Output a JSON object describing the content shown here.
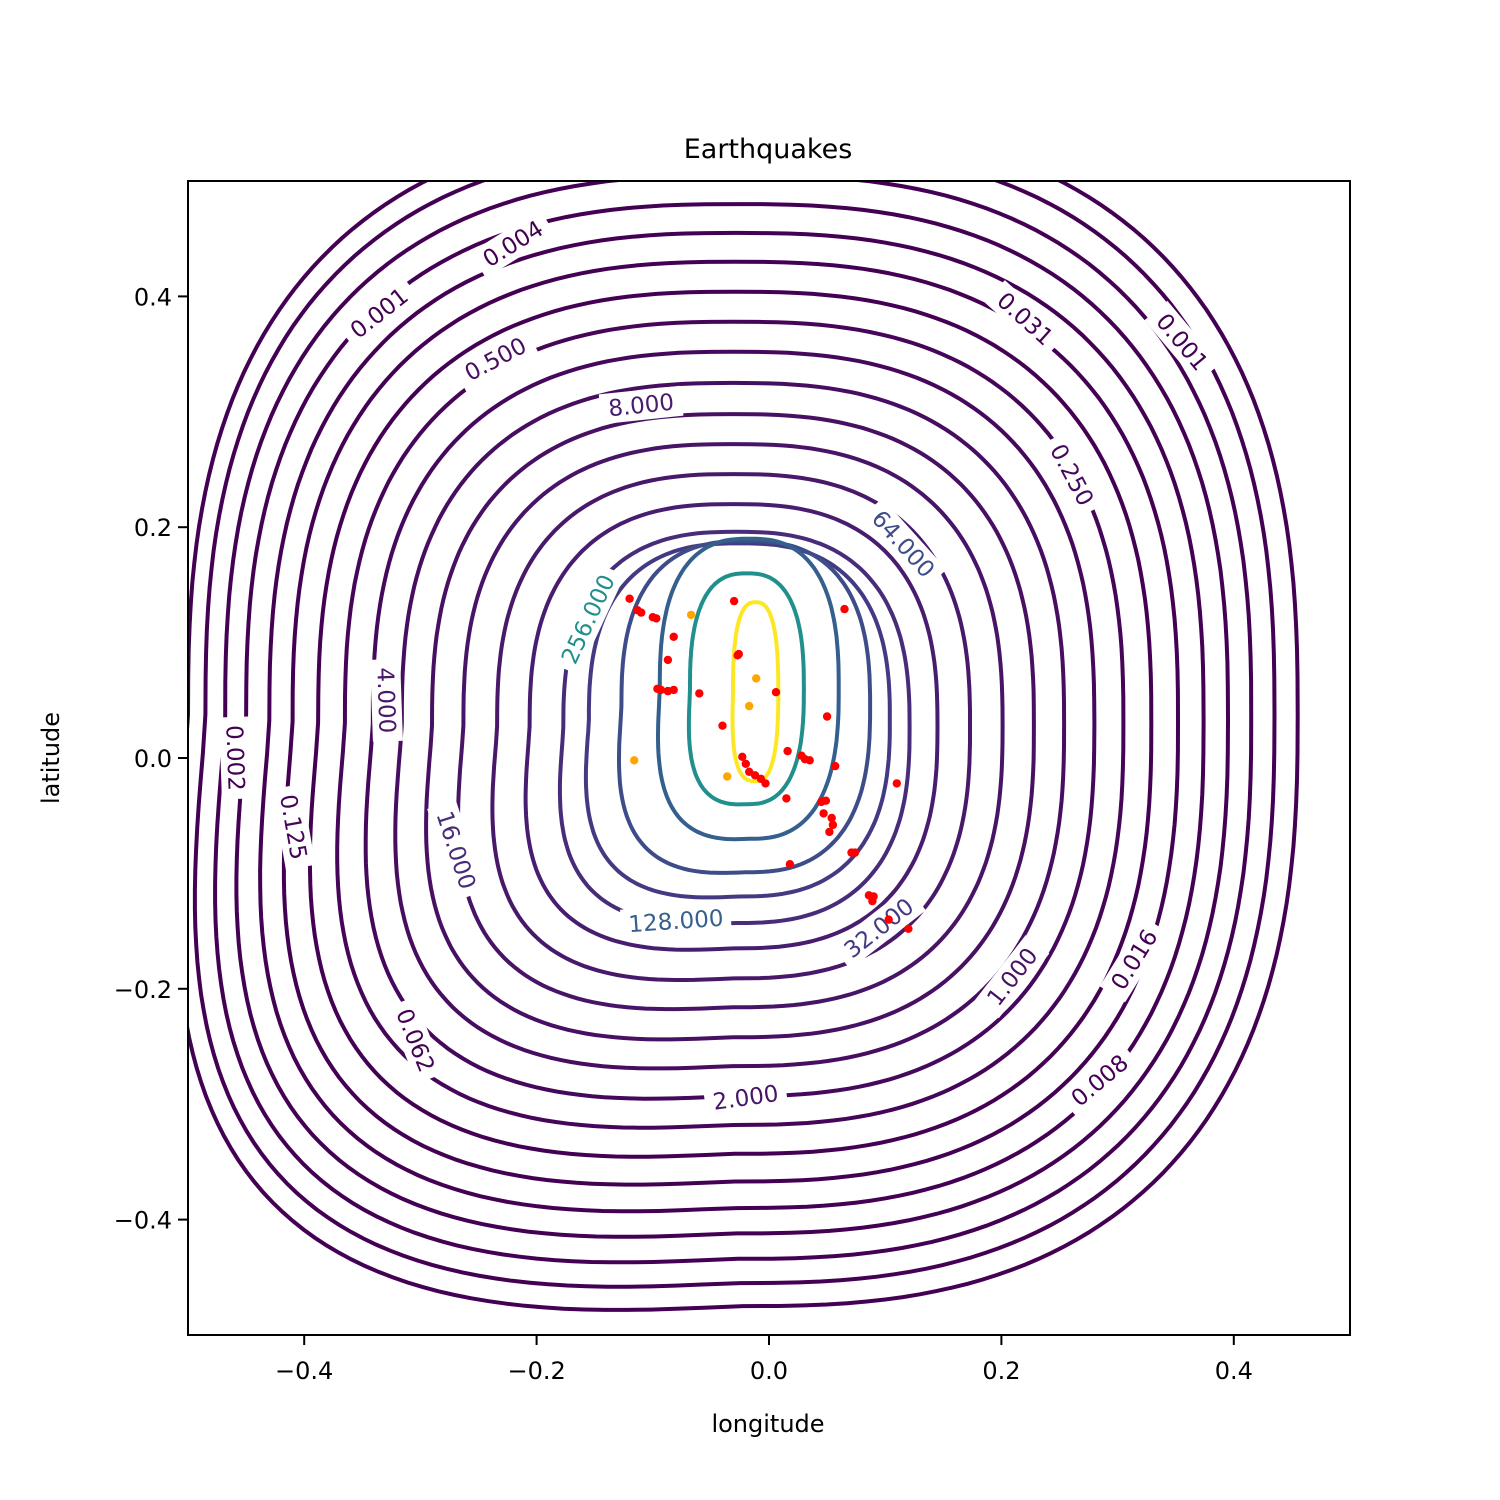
{
  "chart_data": {
    "type": "contour",
    "title": "Earthquakes",
    "xlabel": "longitude",
    "ylabel": "latitude",
    "xlim": [
      -0.5,
      0.5
    ],
    "ylim": [
      -0.5,
      0.5
    ],
    "xticks": [
      {
        "value": -0.4,
        "label": "−0.4"
      },
      {
        "value": -0.2,
        "label": "−0.2"
      },
      {
        "value": 0.0,
        "label": "0.0"
      },
      {
        "value": 0.2,
        "label": "0.2"
      },
      {
        "value": 0.4,
        "label": "0.4"
      }
    ],
    "yticks": [
      {
        "value": 0.4,
        "label": "0.4"
      },
      {
        "value": 0.2,
        "label": "0.2"
      },
      {
        "value": 0.0,
        "label": "0.0"
      },
      {
        "value": -0.2,
        "label": "−0.2"
      },
      {
        "value": -0.4,
        "label": "−0.4"
      }
    ],
    "grid": false,
    "contours": [
      {
        "level": 0.001,
        "label": "0.001",
        "color": "#440154",
        "x0": -0.5,
        "x1": 0.455,
        "y0": -0.475,
        "y1": 0.55
      },
      {
        "level": 0.002,
        "label": "0.002",
        "color": "#440154",
        "x0": -0.485,
        "x1": 0.435,
        "y0": -0.455,
        "y1": 0.53
      },
      {
        "level": 0.004,
        "label": "0.004",
        "color": "#440154",
        "x0": -0.468,
        "x1": 0.415,
        "y0": -0.434,
        "y1": 0.505
      },
      {
        "level": 0.008,
        "label": "0.008",
        "color": "#440154",
        "x0": -0.45,
        "x1": 0.395,
        "y0": -0.412,
        "y1": 0.48
      },
      {
        "level": 0.016,
        "label": "0.016",
        "color": "#440154",
        "x0": -0.43,
        "x1": 0.374,
        "y0": -0.39,
        "y1": 0.455
      },
      {
        "level": 0.031,
        "label": "0.031",
        "color": "#440154",
        "x0": -0.41,
        "x1": 0.352,
        "y0": -0.367,
        "y1": 0.43
      },
      {
        "level": 0.062,
        "label": "0.062",
        "color": "#440154",
        "x0": -0.388,
        "x1": 0.329,
        "y0": -0.343,
        "y1": 0.404
      },
      {
        "level": 0.125,
        "label": "0.125",
        "color": "#450559",
        "x0": -0.365,
        "x1": 0.305,
        "y0": -0.318,
        "y1": 0.378
      },
      {
        "level": 0.25,
        "label": "0.250",
        "color": "#46085c",
        "x0": -0.341,
        "x1": 0.28,
        "y0": -0.293,
        "y1": 0.352
      },
      {
        "level": 0.5,
        "label": "0.500",
        "color": "#470d60",
        "x0": -0.316,
        "x1": 0.254,
        "y0": -0.267,
        "y1": 0.325
      },
      {
        "level": 1.0,
        "label": "1.000",
        "color": "#471063",
        "x0": -0.29,
        "x1": 0.228,
        "y0": -0.242,
        "y1": 0.298
      },
      {
        "level": 2.0,
        "label": "2.000",
        "color": "#481467",
        "x0": -0.263,
        "x1": 0.201,
        "y0": -0.216,
        "y1": 0.272
      },
      {
        "level": 4.0,
        "label": "4.000",
        "color": "#48186a",
        "x0": -0.234,
        "x1": 0.173,
        "y0": -0.191,
        "y1": 0.246
      },
      {
        "level": 8.0,
        "label": "8.000",
        "color": "#481d6f",
        "x0": -0.206,
        "x1": 0.145,
        "y0": -0.165,
        "y1": 0.22
      },
      {
        "level": 16.0,
        "label": "16.000",
        "color": "#472c7a",
        "x0": -0.177,
        "x1": 0.121,
        "y0": -0.143,
        "y1": 0.196
      },
      {
        "level": 32.0,
        "label": "32.000",
        "color": "#443a83",
        "x0": -0.155,
        "x1": 0.104,
        "y0": -0.12,
        "y1": 0.186
      },
      {
        "level": 64.0,
        "label": "64.000",
        "color": "#3e4c8a",
        "x0": -0.127,
        "x1": 0.087,
        "y0": -0.099,
        "y1": 0.188
      },
      {
        "level": 128.0,
        "label": "128.000",
        "color": "#355f8d",
        "x0": -0.094,
        "x1": 0.06,
        "y0": -0.07,
        "y1": 0.19
      },
      {
        "level": 256.0,
        "label": "256.000",
        "color": "#21908d",
        "x0": -0.068,
        "x1": 0.03,
        "y0": -0.04,
        "y1": 0.16
      },
      {
        "level": 512.0,
        "label": "",
        "color": "#fde725",
        "x0": -0.031,
        "x1": 0.008,
        "y0": -0.02,
        "y1": 0.135
      }
    ],
    "points_red": [
      [
        -0.12,
        0.138
      ],
      [
        -0.113,
        0.128
      ],
      [
        -0.11,
        0.126
      ],
      [
        -0.1,
        0.122
      ],
      [
        -0.097,
        0.121
      ],
      [
        -0.087,
        0.085
      ],
      [
        -0.082,
        0.105
      ],
      [
        -0.03,
        0.136
      ],
      [
        -0.027,
        0.089
      ],
      [
        -0.026,
        0.09
      ],
      [
        -0.096,
        0.06
      ],
      [
        -0.093,
        0.059
      ],
      [
        -0.087,
        0.058
      ],
      [
        -0.087,
        0.058
      ],
      [
        -0.082,
        0.059
      ],
      [
        -0.06,
        0.056
      ],
      [
        0.006,
        0.057
      ],
      [
        -0.04,
        0.028
      ],
      [
        -0.023,
        0.001
      ],
      [
        -0.02,
        -0.005
      ],
      [
        -0.017,
        -0.012
      ],
      [
        -0.007,
        -0.018
      ],
      [
        -0.012,
        -0.015
      ],
      [
        -0.003,
        -0.022
      ],
      [
        0.015,
        -0.035
      ],
      [
        0.016,
        0.006
      ],
      [
        0.028,
        0.002
      ],
      [
        0.031,
        -0.001
      ],
      [
        0.035,
        -0.002
      ],
      [
        0.057,
        -0.007
      ],
      [
        0.05,
        0.036
      ],
      [
        0.065,
        0.129
      ],
      [
        0.045,
        -0.038
      ],
      [
        0.049,
        -0.037
      ],
      [
        0.047,
        -0.048
      ],
      [
        0.054,
        -0.052
      ],
      [
        0.055,
        -0.058
      ],
      [
        0.052,
        -0.064
      ],
      [
        0.071,
        -0.082
      ],
      [
        0.074,
        -0.082
      ],
      [
        0.11,
        -0.022
      ],
      [
        0.086,
        -0.119
      ],
      [
        0.09,
        -0.12
      ],
      [
        0.089,
        -0.124
      ],
      [
        0.103,
        -0.14
      ],
      [
        0.12,
        -0.148
      ],
      [
        0.018,
        -0.092
      ]
    ],
    "points_orange": [
      [
        -0.067,
        0.124
      ],
      [
        -0.011,
        0.069
      ],
      [
        -0.017,
        0.045
      ],
      [
        -0.116,
        -0.002
      ],
      [
        -0.036,
        -0.016
      ]
    ]
  }
}
